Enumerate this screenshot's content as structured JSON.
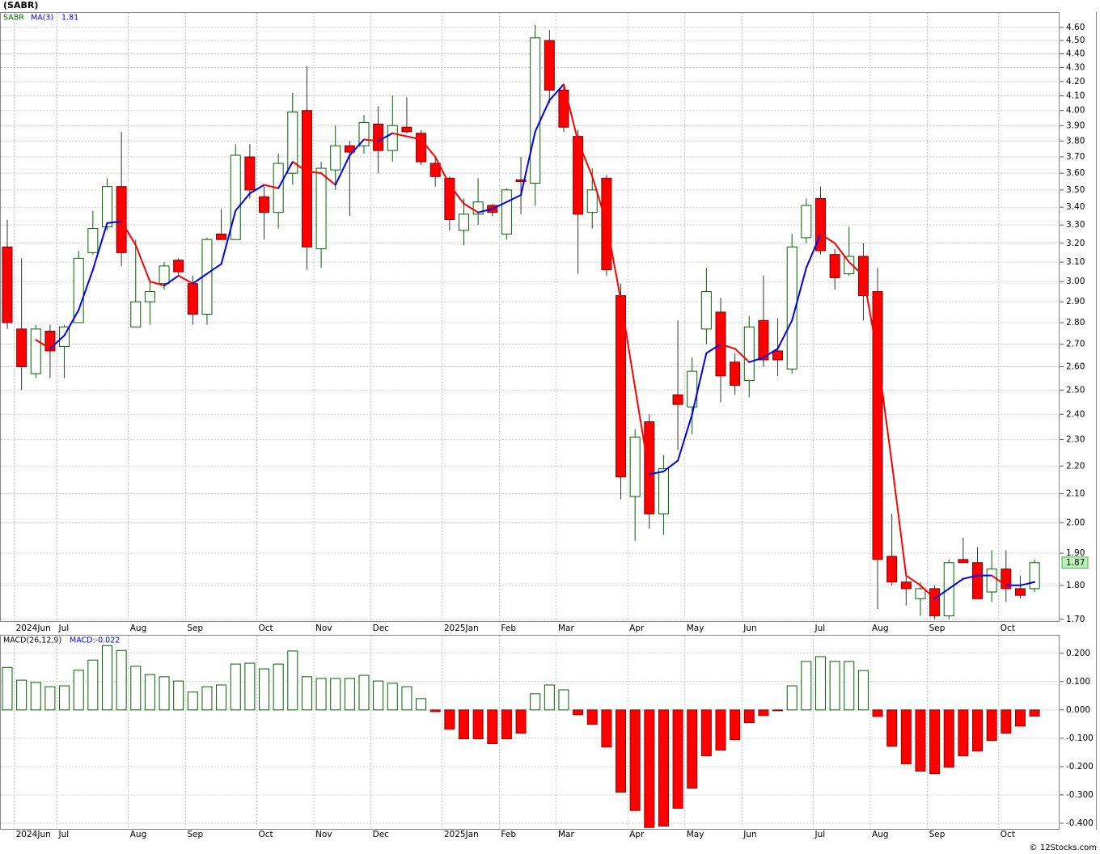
{
  "chart_data": [
    {
      "type": "candlestick",
      "title": "(SABR)",
      "symbol": "SABR",
      "log_scale": true,
      "grid": true,
      "up_color": "#006400",
      "down_color": "#ff0000",
      "categories": [
        null,
        "2024Jun",
        null,
        null,
        "Jul",
        null,
        null,
        null,
        null,
        "Aug",
        null,
        null,
        null,
        "Sep",
        null,
        null,
        null,
        null,
        "Oct",
        null,
        null,
        null,
        "Nov",
        null,
        null,
        null,
        "Dec",
        null,
        null,
        null,
        null,
        "2025Jan",
        null,
        null,
        null,
        "Feb",
        null,
        null,
        null,
        "Mar",
        null,
        null,
        null,
        null,
        "Apr",
        null,
        null,
        null,
        "May",
        null,
        null,
        null,
        "Jun",
        null,
        null,
        null,
        null,
        "Jul",
        null,
        null,
        null,
        "Aug",
        null,
        null,
        null,
        "Sep",
        null,
        null,
        null,
        null,
        "Oct",
        null,
        null
      ],
      "open": [
        3.18,
        2.77,
        2.57,
        2.76,
        2.69,
        2.8,
        3.15,
        3.29,
        3.52,
        2.78,
        2.9,
        2.99,
        3.11,
        2.99,
        2.84,
        3.25,
        3.22,
        3.7,
        3.46,
        3.37,
        3.6,
        4.0,
        3.17,
        3.62,
        3.77,
        3.77,
        3.91,
        3.74,
        3.89,
        3.85,
        3.66,
        3.57,
        3.27,
        3.36,
        3.41,
        3.25,
        3.56,
        3.54,
        4.5,
        4.14,
        3.83,
        3.37,
        3.57,
        2.93,
        2.09,
        2.37,
        2.03,
        2.48,
        2.43,
        2.77,
        2.85,
        2.62,
        2.54,
        2.81,
        2.67,
        2.59,
        3.23,
        3.45,
        3.14,
        3.04,
        3.13,
        2.95,
        1.89,
        1.81,
        1.76,
        1.79,
        1.71,
        1.88,
        1.87,
        1.78,
        1.85,
        1.79,
        1.79
      ],
      "high": [
        3.33,
        3.12,
        2.79,
        2.79,
        2.79,
        3.16,
        3.38,
        3.57,
        3.86,
        3.22,
        3.0,
        3.1,
        3.12,
        3.03,
        3.23,
        3.39,
        3.78,
        3.78,
        3.52,
        3.72,
        4.12,
        4.31,
        3.67,
        3.9,
        3.8,
        3.97,
        4.03,
        4.1,
        4.09,
        3.87,
        3.7,
        3.58,
        3.45,
        3.57,
        3.42,
        3.51,
        3.7,
        4.62,
        4.58,
        4.17,
        3.87,
        3.63,
        3.59,
        2.99,
        2.34,
        2.4,
        2.24,
        2.81,
        2.64,
        3.07,
        2.92,
        2.66,
        2.83,
        3.03,
        2.82,
        3.25,
        3.45,
        3.52,
        3.17,
        3.29,
        3.2,
        3.07,
        2.03,
        1.84,
        1.81,
        1.8,
        1.88,
        1.95,
        1.92,
        1.91,
        1.91,
        1.83,
        1.88
      ],
      "low": [
        2.77,
        2.5,
        2.55,
        2.55,
        2.55,
        2.8,
        3.14,
        3.27,
        3.08,
        2.78,
        2.79,
        2.96,
        3.03,
        2.79,
        2.79,
        3.22,
        3.22,
        3.45,
        3.22,
        3.28,
        3.53,
        3.06,
        3.07,
        3.5,
        3.35,
        3.72,
        3.6,
        3.67,
        3.85,
        3.65,
        3.52,
        3.27,
        3.19,
        3.3,
        3.35,
        3.22,
        3.36,
        3.41,
        4.05,
        3.86,
        3.04,
        3.28,
        3.03,
        2.08,
        1.94,
        1.98,
        1.96,
        2.26,
        2.32,
        2.7,
        2.45,
        2.48,
        2.47,
        2.6,
        2.56,
        2.57,
        3.2,
        3.14,
        2.96,
        3.03,
        2.81,
        1.73,
        1.8,
        1.74,
        1.71,
        1.7,
        1.7,
        1.87,
        1.76,
        1.75,
        1.75,
        1.76,
        1.78
      ],
      "close": [
        2.8,
        2.6,
        2.77,
        2.67,
        2.78,
        3.12,
        3.28,
        3.52,
        3.15,
        2.9,
        2.95,
        3.08,
        3.05,
        2.84,
        3.22,
        3.22,
        3.71,
        3.5,
        3.37,
        3.66,
        3.99,
        3.18,
        3.63,
        3.77,
        3.73,
        3.92,
        3.74,
        3.9,
        3.86,
        3.67,
        3.58,
        3.33,
        3.36,
        3.43,
        3.37,
        3.5,
        3.55,
        4.52,
        4.14,
        3.89,
        3.36,
        3.5,
        3.06,
        2.16,
        2.31,
        2.03,
        2.19,
        2.44,
        2.58,
        2.95,
        2.56,
        2.52,
        2.78,
        2.63,
        2.63,
        3.18,
        3.41,
        3.16,
        3.02,
        3.13,
        2.93,
        1.88,
        1.81,
        1.79,
        1.79,
        1.71,
        1.87,
        1.87,
        1.76,
        1.85,
        1.79,
        1.77,
        1.87
      ],
      "ma": {
        "name": "MA(3)",
        "up_color": "#0000ee",
        "down_color": "#ff0000",
        "values": [
          null,
          null,
          2.72,
          2.68,
          2.74,
          2.86,
          3.06,
          3.31,
          3.32,
          3.19,
          3.0,
          2.98,
          3.03,
          2.99,
          3.04,
          3.09,
          3.38,
          3.48,
          3.53,
          3.51,
          3.67,
          3.61,
          3.6,
          3.53,
          3.71,
          3.81,
          3.8,
          3.85,
          3.83,
          3.81,
          3.7,
          3.53,
          3.42,
          3.37,
          3.39,
          3.43,
          3.47,
          3.86,
          4.07,
          4.18,
          3.8,
          3.58,
          3.31,
          2.91,
          2.51,
          2.17,
          2.18,
          2.22,
          2.4,
          2.66,
          2.7,
          2.68,
          2.62,
          2.64,
          2.68,
          2.81,
          3.07,
          3.25,
          3.2,
          3.1,
          3.03,
          2.65,
          2.21,
          1.83,
          1.8,
          1.76,
          1.79,
          1.82,
          1.83,
          1.83,
          1.8,
          1.8,
          1.81
        ]
      },
      "ylim": [
        1.695,
        4.72
      ],
      "yticks": [
        {
          "value": 1.7,
          "label": "1.70"
        },
        {
          "value": 1.8,
          "label": "1.80"
        },
        {
          "value": 1.9,
          "label": "1.90"
        },
        {
          "value": 2.0,
          "label": "2.00"
        },
        {
          "value": 2.1,
          "label": "2.10"
        },
        {
          "value": 2.2,
          "label": "2.20"
        },
        {
          "value": 2.3,
          "label": "2.30"
        },
        {
          "value": 2.4,
          "label": "2.40"
        },
        {
          "value": 2.5,
          "label": "2.50"
        },
        {
          "value": 2.6,
          "label": "2.60"
        },
        {
          "value": 2.7,
          "label": "2.70"
        },
        {
          "value": 2.8,
          "label": "2.80"
        },
        {
          "value": 2.9,
          "label": "2.90"
        },
        {
          "value": 3.0,
          "label": "3.00"
        },
        {
          "value": 3.1,
          "label": "3.10"
        },
        {
          "value": 3.2,
          "label": "3.20"
        },
        {
          "value": 3.3,
          "label": "3.30"
        },
        {
          "value": 3.4,
          "label": "3.40"
        },
        {
          "value": 3.5,
          "label": "3.50"
        },
        {
          "value": 3.6,
          "label": "3.60"
        },
        {
          "value": 3.7,
          "label": "3.70"
        },
        {
          "value": 3.8,
          "label": "3.80"
        },
        {
          "value": 3.9,
          "label": "3.90"
        },
        {
          "value": 4.0,
          "label": "4.00"
        },
        {
          "value": 4.1,
          "label": "4.10"
        },
        {
          "value": 4.2,
          "label": "4.20"
        },
        {
          "value": 4.3,
          "label": "4.30"
        },
        {
          "value": 4.4,
          "label": "4.40"
        },
        {
          "value": 4.5,
          "label": "4.50"
        },
        {
          "value": 4.6,
          "label": "4.60"
        }
      ]
    },
    {
      "type": "bar",
      "title": "MACD(26,12,9)",
      "value_label": "MACD:-0.022",
      "grid": true,
      "pos_color": "#006400",
      "neg_color": "#ff0000",
      "values": [
        0.15,
        0.105,
        0.097,
        0.082,
        0.085,
        0.14,
        0.176,
        0.227,
        0.21,
        0.154,
        0.125,
        0.117,
        0.102,
        0.063,
        0.082,
        0.088,
        0.162,
        0.165,
        0.145,
        0.162,
        0.208,
        0.117,
        0.111,
        0.111,
        0.111,
        0.122,
        0.102,
        0.094,
        0.082,
        0.04,
        -0.006,
        -0.068,
        -0.102,
        -0.102,
        -0.119,
        -0.102,
        -0.082,
        0.057,
        0.088,
        0.071,
        -0.017,
        -0.051,
        -0.131,
        -0.29,
        -0.355,
        -0.415,
        -0.41,
        -0.347,
        -0.276,
        -0.162,
        -0.142,
        -0.105,
        -0.045,
        -0.02,
        -0.003,
        0.085,
        0.171,
        0.188,
        0.171,
        0.171,
        0.139,
        -0.023,
        -0.128,
        -0.19,
        -0.216,
        -0.225,
        -0.202,
        -0.162,
        -0.145,
        -0.108,
        -0.082,
        -0.057,
        -0.022
      ],
      "ylim": [
        -0.42,
        0.265
      ],
      "yticks": [
        {
          "value": -0.4,
          "label": "-0.400"
        },
        {
          "value": -0.3,
          "label": "-0.300"
        },
        {
          "value": -0.2,
          "label": "-0.200"
        },
        {
          "value": -0.1,
          "label": "-0.100"
        },
        {
          "value": 0,
          "label": "0.000"
        },
        {
          "value": 0.1,
          "label": "0.100"
        },
        {
          "value": 0.2,
          "label": "0.200"
        }
      ]
    }
  ],
  "footer": "© 12Stocks.com"
}
